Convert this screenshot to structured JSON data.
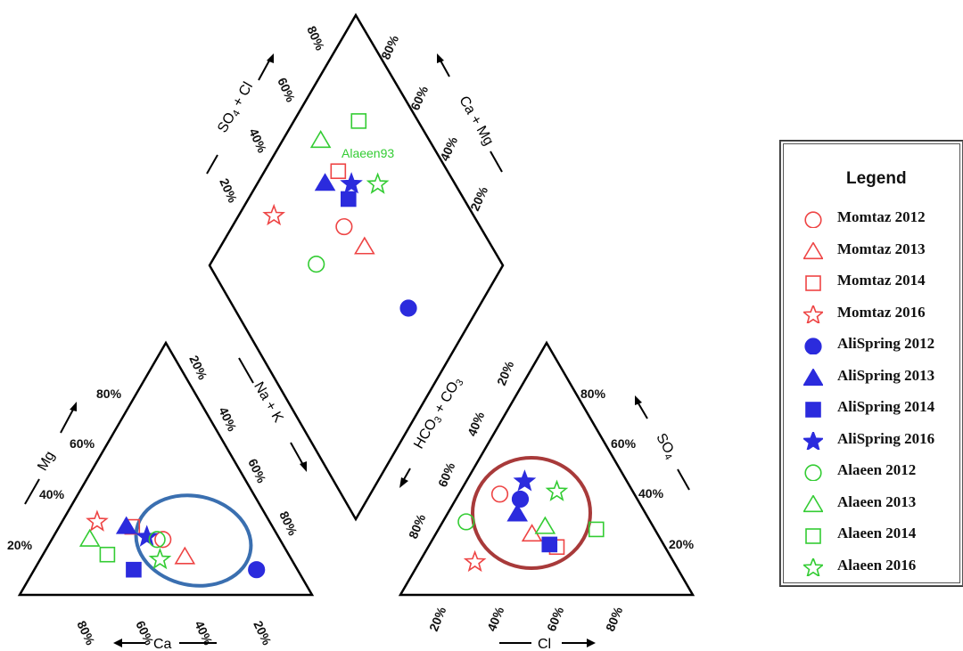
{
  "chart_data": {
    "type": "scatter",
    "subtype": "piper-diagram",
    "grid": false,
    "legend_placement": "right",
    "axes": {
      "cation_triangle": {
        "axis_mg": "Mg",
        "axis_ca": "Ca",
        "axis_nak": "Na + K",
        "mg_ticks": [
          "20%",
          "40%",
          "60%",
          "80%"
        ],
        "ca_ticks": [
          "80%",
          "60%",
          "40%",
          "20%"
        ],
        "nak_ticks": [
          "20%",
          "40%",
          "60%",
          "80%"
        ]
      },
      "anion_triangle": {
        "axis_hco3": "HCO3 + CO3",
        "axis_so4": "SO4",
        "axis_cl": "Cl",
        "hco3_ticks": [
          "20%",
          "40%",
          "60%",
          "80%"
        ],
        "so4_ticks": [
          "80%",
          "60%",
          "40%",
          "20%"
        ],
        "cl_ticks": [
          "20%",
          "40%",
          "60%",
          "80%"
        ]
      },
      "diamond": {
        "axis_so4cl": "SO4 + Cl",
        "axis_camg": "Ca + Mg",
        "so4cl_ticks": [
          "20%",
          "40%",
          "60%",
          "80%"
        ],
        "camg_ticks": [
          "20%",
          "40%",
          "60%",
          "80%"
        ]
      }
    },
    "annotations": [
      "Alaeen93"
    ],
    "series": [
      {
        "name": "Momtaz 2012",
        "color": "#ee4444",
        "marker": "circle",
        "filled": false,
        "cation": {
          "ca": 40,
          "mg": 22,
          "nak": 38
        },
        "anion": {
          "hco3": 46,
          "so4": 40,
          "cl": 14
        }
      },
      {
        "name": "Momtaz 2013",
        "color": "#ee4444",
        "marker": "triangle",
        "filled": false,
        "cation": {
          "ca": 36,
          "mg": 15,
          "nak": 49
        },
        "anion": {
          "hco3": 43,
          "so4": 24,
          "cl": 33
        }
      },
      {
        "name": "Momtaz 2014",
        "color": "#ee4444",
        "marker": "square",
        "filled": false,
        "cation": {
          "ca": 48,
          "mg": 27,
          "nak": 25
        },
        "anion": {
          "hco3": 37,
          "so4": 19,
          "cl": 44
        }
      },
      {
        "name": "Momtaz 2016",
        "color": "#ee4444",
        "marker": "star",
        "filled": false,
        "cation": {
          "ca": 59,
          "mg": 29,
          "nak": 12
        },
        "anion": {
          "hco3": 68,
          "so4": 13,
          "cl": 19
        }
      },
      {
        "name": "AliSpring 2012",
        "color": "#2b2bdd",
        "marker": "circle",
        "filled": true,
        "cation": {
          "ca": 14,
          "mg": 10,
          "nak": 76
        },
        "anion": {
          "hco3": 40,
          "so4": 38,
          "cl": 22
        }
      },
      {
        "name": "AliSpring 2013",
        "color": "#2b2bdd",
        "marker": "triangle",
        "filled": true,
        "cation": {
          "ca": 50,
          "mg": 27,
          "nak": 23
        },
        "anion": {
          "hco3": 44,
          "so4": 32,
          "cl": 24
        }
      },
      {
        "name": "AliSpring 2014",
        "color": "#2b2bdd",
        "marker": "square",
        "filled": true,
        "cation": {
          "ca": 56,
          "mg": 10,
          "nak": 34
        },
        "anion": {
          "hco3": 39,
          "so4": 20,
          "cl": 41
        }
      },
      {
        "name": "AliSpring 2016",
        "color": "#2b2bdd",
        "marker": "star",
        "filled": true,
        "cation": {
          "ca": 45,
          "mg": 23,
          "nak": 32
        },
        "anion": {
          "hco3": 35,
          "so4": 45,
          "cl": 20
        }
      },
      {
        "name": "Alaeen 2012",
        "color": "#33cc33",
        "marker": "circle",
        "filled": false,
        "cation": {
          "ca": 42,
          "mg": 22,
          "nak": 36
        },
        "anion": {
          "hco3": 63,
          "so4": 29,
          "cl": 8
        }
      },
      {
        "name": "Alaeen 2013",
        "color": "#33cc33",
        "marker": "triangle",
        "filled": false,
        "cation": {
          "ca": 65,
          "mg": 22,
          "nak": 13
        },
        "anion": {
          "hco3": 37,
          "so4": 27,
          "cl": 36
        }
      },
      {
        "name": "Alaeen 2014",
        "color": "#33cc33",
        "marker": "square",
        "filled": false,
        "cation": {
          "ca": 62,
          "mg": 16,
          "nak": 22
        },
        "anion": {
          "hco3": 20,
          "so4": 26,
          "cl": 54
        }
      },
      {
        "name": "Alaeen 2016",
        "color": "#33cc33",
        "marker": "star",
        "filled": false,
        "cation": {
          "ca": 45,
          "mg": 14,
          "nak": 41
        },
        "anion": {
          "hco3": 26,
          "so4": 41,
          "cl": 33
        }
      }
    ]
  },
  "legend": {
    "title": "Legend"
  },
  "colors": {
    "cation_ellipse": "#3a6fb0",
    "anion_ellipse": "#a83a3a",
    "annotation": "#33cc33"
  }
}
